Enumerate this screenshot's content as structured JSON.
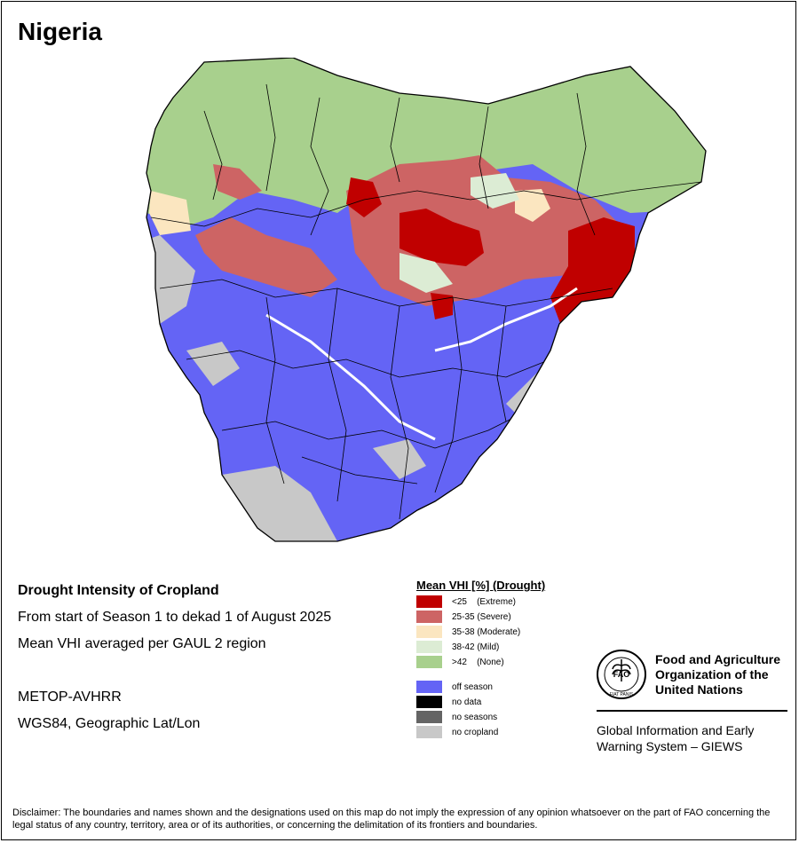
{
  "title": "Nigeria",
  "info": {
    "heading": "Drought Intensity of Cropland",
    "period": "From start of Season 1 to dekad 1 of August 2025",
    "method": "Mean VHI averaged per GAUL 2 region",
    "sensor": "METOP-AVHRR",
    "projection": "WGS84, Geographic Lat/Lon"
  },
  "legend": {
    "title": "Mean VHI [%] (Drought)",
    "classes": [
      {
        "label": "<25    (Extreme)",
        "color": "#c00000"
      },
      {
        "label": "25-35 (Severe)",
        "color": "#cd6464"
      },
      {
        "label": "35-38 (Moderate)",
        "color": "#fbe6c0"
      },
      {
        "label": "38-42 (Mild)",
        "color": "#dcecd4"
      },
      {
        "label": ">42    (None)",
        "color": "#a8d08d"
      }
    ],
    "other": [
      {
        "label": "off season",
        "color": "#6464f5"
      },
      {
        "label": "no data",
        "color": "#000000"
      },
      {
        "label": "no seasons",
        "color": "#646464"
      },
      {
        "label": "no cropland",
        "color": "#c8c8c8"
      }
    ]
  },
  "organization": {
    "logo_text": "FAO",
    "logo_motto": "FIAT PANIS",
    "name_line1": "Food and Agriculture",
    "name_line2": "Organization of the",
    "name_line3": "United Nations",
    "system_line1": "Global Information and Early",
    "system_line2": "Warning System – GIEWS"
  },
  "disclaimer": "Disclaimer: The boundaries and names shown and the designations used on this map do not imply the expression of any opinion whatsoever on the part of FAO concerning the legal status of any country, territory, area or of its authorities, or concerning the delimitation of its frontiers and boundaries."
}
